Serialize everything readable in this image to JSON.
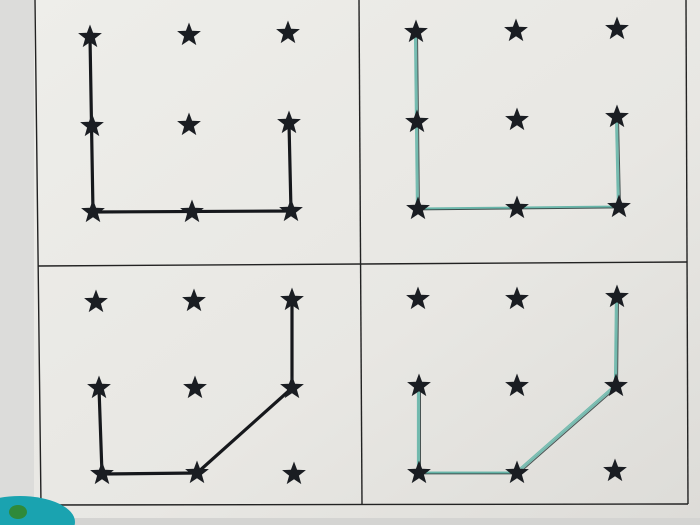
{
  "worksheet": {
    "grid_size": [
      3,
      3
    ],
    "colors": {
      "paper": "#e9e8e4",
      "star": "#1a1d22",
      "printed_line": "#16181c",
      "traced_line": "#5fb3a6",
      "traced_line_dark": "#2c3a3a",
      "toy": "#1aa3b0"
    },
    "panels": [
      {
        "name": "example-top",
        "style": "printed",
        "path": [
          [
            0,
            0
          ],
          [
            2,
            0
          ],
          [
            2,
            2
          ],
          [
            1,
            2
          ]
        ]
      },
      {
        "name": "trace-top",
        "style": "traced",
        "path": [
          [
            0,
            0
          ],
          [
            2,
            0
          ],
          [
            2,
            2
          ],
          [
            1,
            2
          ]
        ]
      },
      {
        "name": "example-bottom",
        "style": "printed",
        "path": [
          [
            1,
            0
          ],
          [
            2,
            0
          ],
          [
            2,
            1
          ],
          [
            1,
            2
          ],
          [
            0,
            2
          ]
        ]
      },
      {
        "name": "trace-bottom",
        "style": "traced",
        "path": [
          [
            1,
            0
          ],
          [
            2,
            0
          ],
          [
            2,
            1
          ],
          [
            1,
            2
          ],
          [
            0,
            2
          ]
        ]
      }
    ]
  }
}
